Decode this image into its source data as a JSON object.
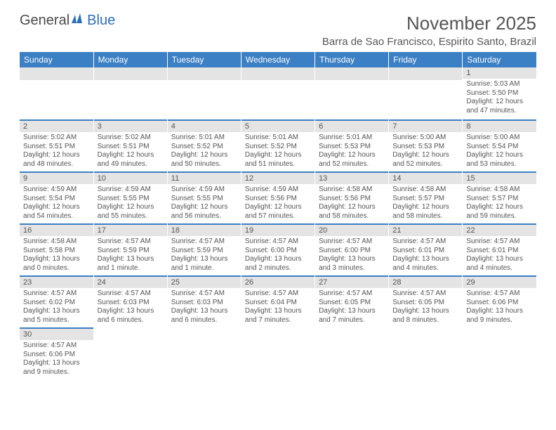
{
  "logo": {
    "part1": "General",
    "part2": "Blue"
  },
  "title": "November 2025",
  "location": "Barra de Sao Francisco, Espirito Santo, Brazil",
  "colors": {
    "header_bg": "#3b7fc4",
    "header_text": "#ffffff",
    "daynum_bg": "#e4e4e4",
    "text": "#555555",
    "accent": "#2d6fb8"
  },
  "weekdays": [
    "Sunday",
    "Monday",
    "Tuesday",
    "Wednesday",
    "Thursday",
    "Friday",
    "Saturday"
  ],
  "weeks": [
    [
      null,
      null,
      null,
      null,
      null,
      null,
      {
        "n": "1",
        "sr": "5:03 AM",
        "ss": "5:50 PM",
        "dl": "12 hours and 47 minutes."
      }
    ],
    [
      {
        "n": "2",
        "sr": "5:02 AM",
        "ss": "5:51 PM",
        "dl": "12 hours and 48 minutes."
      },
      {
        "n": "3",
        "sr": "5:02 AM",
        "ss": "5:51 PM",
        "dl": "12 hours and 49 minutes."
      },
      {
        "n": "4",
        "sr": "5:01 AM",
        "ss": "5:52 PM",
        "dl": "12 hours and 50 minutes."
      },
      {
        "n": "5",
        "sr": "5:01 AM",
        "ss": "5:52 PM",
        "dl": "12 hours and 51 minutes."
      },
      {
        "n": "6",
        "sr": "5:01 AM",
        "ss": "5:53 PM",
        "dl": "12 hours and 52 minutes."
      },
      {
        "n": "7",
        "sr": "5:00 AM",
        "ss": "5:53 PM",
        "dl": "12 hours and 52 minutes."
      },
      {
        "n": "8",
        "sr": "5:00 AM",
        "ss": "5:54 PM",
        "dl": "12 hours and 53 minutes."
      }
    ],
    [
      {
        "n": "9",
        "sr": "4:59 AM",
        "ss": "5:54 PM",
        "dl": "12 hours and 54 minutes."
      },
      {
        "n": "10",
        "sr": "4:59 AM",
        "ss": "5:55 PM",
        "dl": "12 hours and 55 minutes."
      },
      {
        "n": "11",
        "sr": "4:59 AM",
        "ss": "5:55 PM",
        "dl": "12 hours and 56 minutes."
      },
      {
        "n": "12",
        "sr": "4:59 AM",
        "ss": "5:56 PM",
        "dl": "12 hours and 57 minutes."
      },
      {
        "n": "13",
        "sr": "4:58 AM",
        "ss": "5:56 PM",
        "dl": "12 hours and 58 minutes."
      },
      {
        "n": "14",
        "sr": "4:58 AM",
        "ss": "5:57 PM",
        "dl": "12 hours and 58 minutes."
      },
      {
        "n": "15",
        "sr": "4:58 AM",
        "ss": "5:57 PM",
        "dl": "12 hours and 59 minutes."
      }
    ],
    [
      {
        "n": "16",
        "sr": "4:58 AM",
        "ss": "5:58 PM",
        "dl": "13 hours and 0 minutes."
      },
      {
        "n": "17",
        "sr": "4:57 AM",
        "ss": "5:59 PM",
        "dl": "13 hours and 1 minute."
      },
      {
        "n": "18",
        "sr": "4:57 AM",
        "ss": "5:59 PM",
        "dl": "13 hours and 1 minute."
      },
      {
        "n": "19",
        "sr": "4:57 AM",
        "ss": "6:00 PM",
        "dl": "13 hours and 2 minutes."
      },
      {
        "n": "20",
        "sr": "4:57 AM",
        "ss": "6:00 PM",
        "dl": "13 hours and 3 minutes."
      },
      {
        "n": "21",
        "sr": "4:57 AM",
        "ss": "6:01 PM",
        "dl": "13 hours and 4 minutes."
      },
      {
        "n": "22",
        "sr": "4:57 AM",
        "ss": "6:01 PM",
        "dl": "13 hours and 4 minutes."
      }
    ],
    [
      {
        "n": "23",
        "sr": "4:57 AM",
        "ss": "6:02 PM",
        "dl": "13 hours and 5 minutes."
      },
      {
        "n": "24",
        "sr": "4:57 AM",
        "ss": "6:03 PM",
        "dl": "13 hours and 6 minutes."
      },
      {
        "n": "25",
        "sr": "4:57 AM",
        "ss": "6:03 PM",
        "dl": "13 hours and 6 minutes."
      },
      {
        "n": "26",
        "sr": "4:57 AM",
        "ss": "6:04 PM",
        "dl": "13 hours and 7 minutes."
      },
      {
        "n": "27",
        "sr": "4:57 AM",
        "ss": "6:05 PM",
        "dl": "13 hours and 7 minutes."
      },
      {
        "n": "28",
        "sr": "4:57 AM",
        "ss": "6:05 PM",
        "dl": "13 hours and 8 minutes."
      },
      {
        "n": "29",
        "sr": "4:57 AM",
        "ss": "6:06 PM",
        "dl": "13 hours and 9 minutes."
      }
    ],
    [
      {
        "n": "30",
        "sr": "4:57 AM",
        "ss": "6:06 PM",
        "dl": "13 hours and 9 minutes."
      },
      null,
      null,
      null,
      null,
      null,
      null
    ]
  ],
  "labels": {
    "sunrise": "Sunrise:",
    "sunset": "Sunset:",
    "daylight": "Daylight:"
  }
}
